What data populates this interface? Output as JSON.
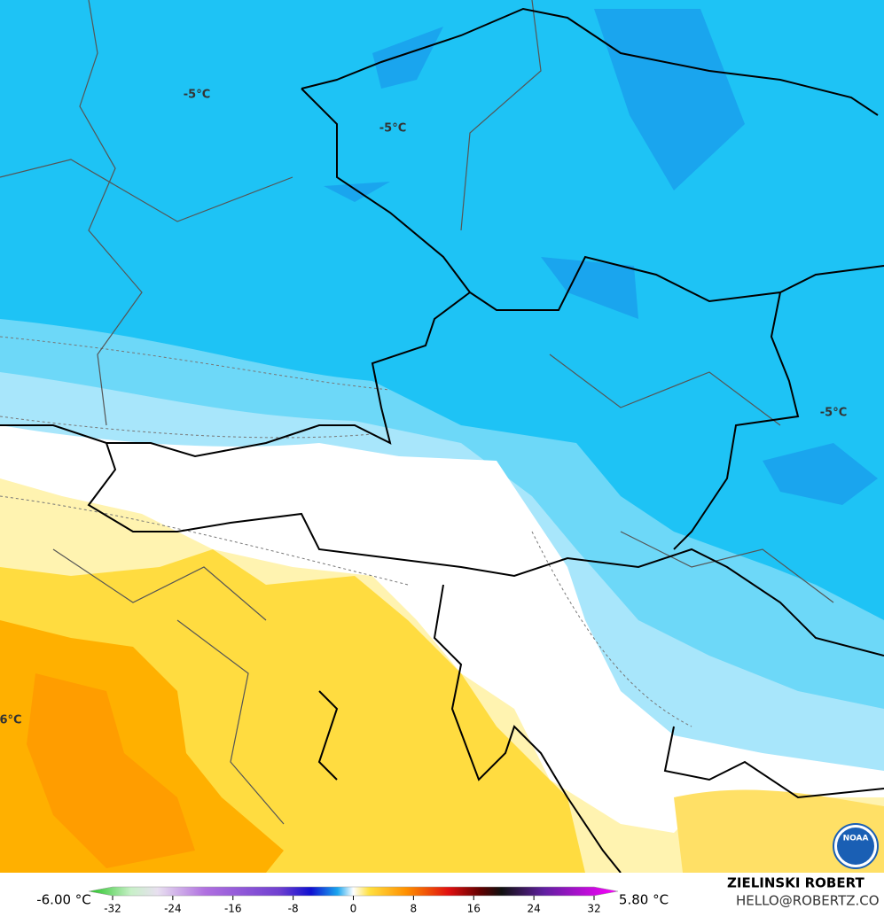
{
  "map": {
    "contour_labels": [
      "-5°C",
      "-5°C",
      "-5°C",
      "6°C"
    ],
    "logo": "NOAA"
  },
  "footer": {
    "min_label": "-6.00 °C",
    "max_label": "5.80 °C",
    "credit_name": "ZIELINSKI ROBERT",
    "credit_email": "HELLO@ROBERTZ.CO"
  },
  "colorbar": {
    "ticks": [
      -32,
      -24,
      -16,
      -8,
      0,
      8,
      16,
      24,
      32
    ]
  }
}
